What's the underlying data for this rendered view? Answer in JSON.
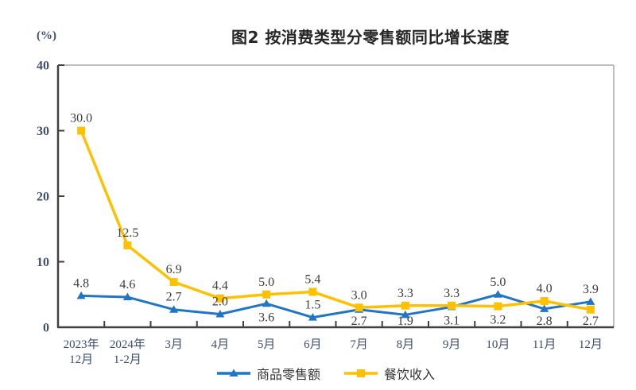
{
  "chart_data": {
    "type": "line",
    "title": "图2 按消费类型分零售额同比增长速度",
    "ylabel": "(%)",
    "xlabel": "",
    "ylim": [
      0,
      40
    ],
    "yticks": [
      0,
      10,
      20,
      30,
      40
    ],
    "grid": false,
    "legend_position": "bottom",
    "categories": [
      "2023年12月",
      "2024年1-2月",
      "3月",
      "4月",
      "5月",
      "6月",
      "7月",
      "8月",
      "9月",
      "10月",
      "11月",
      "12月"
    ],
    "category_display": [
      [
        "2023年",
        "12月"
      ],
      [
        "2024年",
        "1-2月"
      ],
      [
        "3月"
      ],
      [
        "4月"
      ],
      [
        "5月"
      ],
      [
        "6月"
      ],
      [
        "7月"
      ],
      [
        "8月"
      ],
      [
        "9月"
      ],
      [
        "10月"
      ],
      [
        "11月"
      ],
      [
        "12月"
      ]
    ],
    "series": [
      {
        "name": "商品零售额",
        "color": "#2274C5",
        "marker": "triangle",
        "values": [
          4.8,
          4.6,
          2.7,
          2.0,
          3.6,
          1.5,
          2.7,
          1.9,
          3.1,
          5.0,
          2.8,
          3.9
        ],
        "label_pos": [
          "above",
          "above",
          "above",
          "above",
          "below",
          "above",
          "below",
          "below",
          "below",
          "above",
          "below",
          "above"
        ]
      },
      {
        "name": "餐饮收入",
        "color": "#FDC101",
        "marker": "square",
        "values": [
          30.0,
          12.5,
          6.9,
          4.4,
          5.0,
          5.4,
          3.0,
          3.3,
          3.3,
          3.2,
          4.0,
          2.7
        ],
        "label_pos": [
          "above",
          "above",
          "above",
          "above",
          "above",
          "above",
          "above",
          "above",
          "above",
          "below",
          "above",
          "below"
        ]
      }
    ]
  },
  "colors": {
    "axis_dark": "#404040",
    "axis_light": "#a8a8a8",
    "tick_label": "#3d4c70",
    "data_label": "#3d3d3d",
    "title": "#262626",
    "background": "#ffffff"
  }
}
